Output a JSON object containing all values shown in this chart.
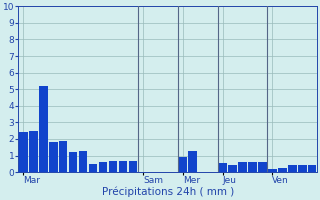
{
  "title": "",
  "xlabel": "Précipitations 24h ( mm )",
  "ylabel": "",
  "background_color": "#d4eeee",
  "bar_color": "#1144cc",
  "grid_color": "#99bbbb",
  "vline_color": "#556688",
  "ylim": [
    0,
    10
  ],
  "yticks": [
    0,
    1,
    2,
    3,
    4,
    5,
    6,
    7,
    8,
    9,
    10
  ],
  "bar_values": [
    2.4,
    2.5,
    5.2,
    1.8,
    1.9,
    1.2,
    1.3,
    0.5,
    0.6,
    0.65,
    0.65,
    0.7,
    0,
    0,
    0,
    0,
    0.9,
    1.3,
    0,
    0,
    0.55,
    0.45,
    0.6,
    0.6,
    0.6,
    0.2,
    0.25,
    0.45,
    0.45,
    0.45
  ],
  "day_labels": [
    "Mar",
    "Sam",
    "Mer",
    "Jeu",
    "Ven"
  ],
  "day_bar_starts": [
    0,
    12,
    16,
    20,
    25
  ],
  "vline_positions": [
    11.5,
    15.5,
    19.5,
    24.5
  ],
  "n_bars": 30,
  "bar_width": 0.85,
  "xlabel_fontsize": 7.5,
  "tick_fontsize": 6.5
}
